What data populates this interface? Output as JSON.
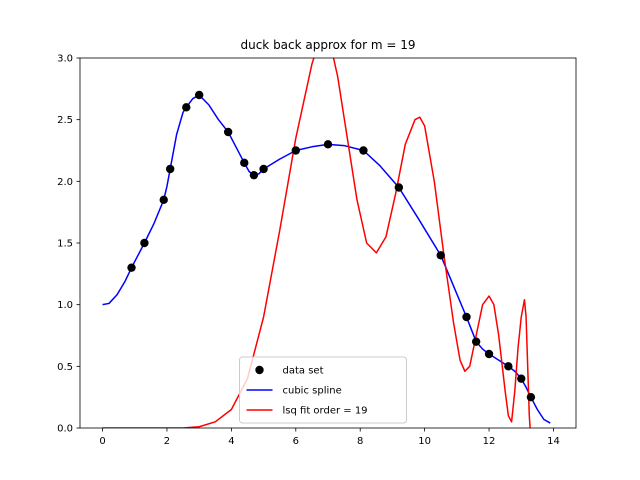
{
  "chart_data": {
    "type": "line",
    "title": "duck back approx for m = 19",
    "xlabel": "",
    "ylabel": "",
    "xlim": [
      -0.7,
      14.7
    ],
    "ylim": [
      0.0,
      3.0
    ],
    "xticks": [
      0,
      2,
      4,
      6,
      8,
      10,
      12,
      14
    ],
    "yticks": [
      0.0,
      0.5,
      1.0,
      1.5,
      2.0,
      2.5,
      3.0
    ],
    "xtick_labels": [
      "0",
      "2",
      "4",
      "6",
      "8",
      "10",
      "12",
      "14"
    ],
    "ytick_labels": [
      "0.0",
      "0.5",
      "1.0",
      "1.5",
      "2.0",
      "2.5",
      "3.0"
    ],
    "grid": false,
    "legend_position": "lower center",
    "series": [
      {
        "name": "data set",
        "kind": "scatter",
        "color": "#000000",
        "x": [
          0.9,
          1.3,
          1.9,
          2.1,
          2.6,
          3.0,
          3.9,
          4.4,
          4.7,
          5.0,
          6.0,
          7.0,
          8.1,
          9.2,
          10.5,
          11.3,
          11.6,
          12.0,
          12.6,
          13.0,
          13.3
        ],
        "y": [
          1.3,
          1.5,
          1.85,
          2.1,
          2.6,
          2.7,
          2.4,
          2.15,
          2.05,
          2.1,
          2.25,
          2.3,
          2.25,
          1.95,
          1.4,
          0.9,
          0.7,
          0.6,
          0.5,
          0.4,
          0.25
        ]
      },
      {
        "name": "cubic spline",
        "kind": "line",
        "color": "#0000ff",
        "x": [
          0.0,
          0.2,
          0.45,
          0.7,
          0.9,
          1.1,
          1.3,
          1.6,
          1.9,
          2.0,
          2.1,
          2.3,
          2.5,
          2.6,
          2.8,
          3.0,
          3.3,
          3.6,
          3.9,
          4.1,
          4.4,
          4.55,
          4.7,
          4.85,
          5.0,
          5.5,
          6.0,
          6.5,
          7.0,
          7.5,
          8.1,
          8.6,
          9.2,
          9.8,
          10.5,
          10.9,
          11.3,
          11.45,
          11.6,
          11.8,
          12.0,
          12.3,
          12.6,
          12.8,
          13.0,
          13.15,
          13.3,
          13.5,
          13.7,
          13.9
        ],
        "y": [
          1.0,
          1.01,
          1.08,
          1.19,
          1.3,
          1.4,
          1.5,
          1.66,
          1.85,
          1.96,
          2.1,
          2.38,
          2.56,
          2.6,
          2.67,
          2.7,
          2.62,
          2.5,
          2.4,
          2.3,
          2.15,
          2.08,
          2.05,
          2.06,
          2.1,
          2.18,
          2.25,
          2.28,
          2.3,
          2.29,
          2.25,
          2.13,
          1.95,
          1.7,
          1.4,
          1.15,
          0.9,
          0.8,
          0.7,
          0.64,
          0.6,
          0.55,
          0.5,
          0.46,
          0.4,
          0.33,
          0.25,
          0.15,
          0.07,
          0.04
        ]
      },
      {
        "name": "lsq fit order = 19",
        "kind": "line",
        "color": "#ff0000",
        "x": [
          0.0,
          1.5,
          2.5,
          3.0,
          3.5,
          4.0,
          4.5,
          5.0,
          5.5,
          6.0,
          6.5,
          6.8,
          7.0,
          7.3,
          7.6,
          7.9,
          8.2,
          8.5,
          8.8,
          9.1,
          9.4,
          9.7,
          9.85,
          10.0,
          10.3,
          10.6,
          10.9,
          11.1,
          11.25,
          11.4,
          11.6,
          11.8,
          12.0,
          12.15,
          12.3,
          12.5,
          12.6,
          12.7,
          12.8,
          12.9,
          13.0,
          13.1,
          13.15,
          13.2,
          13.25,
          13.3
        ],
        "y": [
          0.0,
          0.0,
          0.0,
          0.01,
          0.05,
          0.15,
          0.4,
          0.9,
          1.6,
          2.35,
          2.95,
          3.2,
          3.2,
          2.85,
          2.35,
          1.85,
          1.5,
          1.42,
          1.55,
          1.9,
          2.3,
          2.5,
          2.52,
          2.45,
          2.0,
          1.4,
          0.85,
          0.55,
          0.46,
          0.5,
          0.75,
          1.0,
          1.07,
          1.0,
          0.75,
          0.3,
          0.1,
          0.05,
          0.3,
          0.65,
          0.9,
          1.04,
          0.9,
          0.5,
          0.1,
          -0.1
        ]
      }
    ]
  }
}
